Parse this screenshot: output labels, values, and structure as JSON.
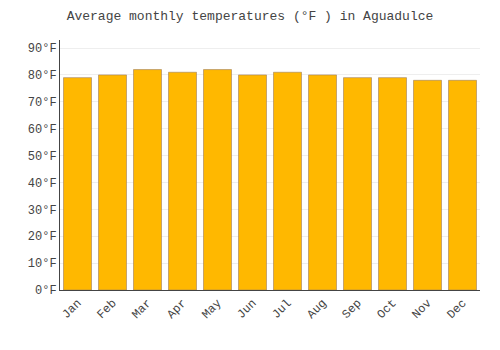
{
  "chart_data": {
    "type": "bar",
    "title": "Average monthly temperatures (°F ) in Aguadulce",
    "categories": [
      "Jan",
      "Feb",
      "Mar",
      "Apr",
      "May",
      "Jun",
      "Jul",
      "Aug",
      "Sep",
      "Oct",
      "Nov",
      "Dec"
    ],
    "values": [
      79,
      80,
      82,
      81,
      82,
      80,
      81,
      80,
      79,
      79,
      78,
      78
    ],
    "color": "#FFB800",
    "ylim": [
      0,
      93
    ],
    "yticks": [
      {
        "value": 0,
        "label": "0°F"
      },
      {
        "value": 10,
        "label": "10°F"
      },
      {
        "value": 20,
        "label": "20°F"
      },
      {
        "value": 30,
        "label": "30°F"
      },
      {
        "value": 40,
        "label": "40°F"
      },
      {
        "value": 50,
        "label": "50°F"
      },
      {
        "value": 60,
        "label": "60°F"
      },
      {
        "value": 70,
        "label": "70°F"
      },
      {
        "value": 80,
        "label": "80°F"
      },
      {
        "value": 90,
        "label": "90°F"
      }
    ],
    "grid": true
  }
}
